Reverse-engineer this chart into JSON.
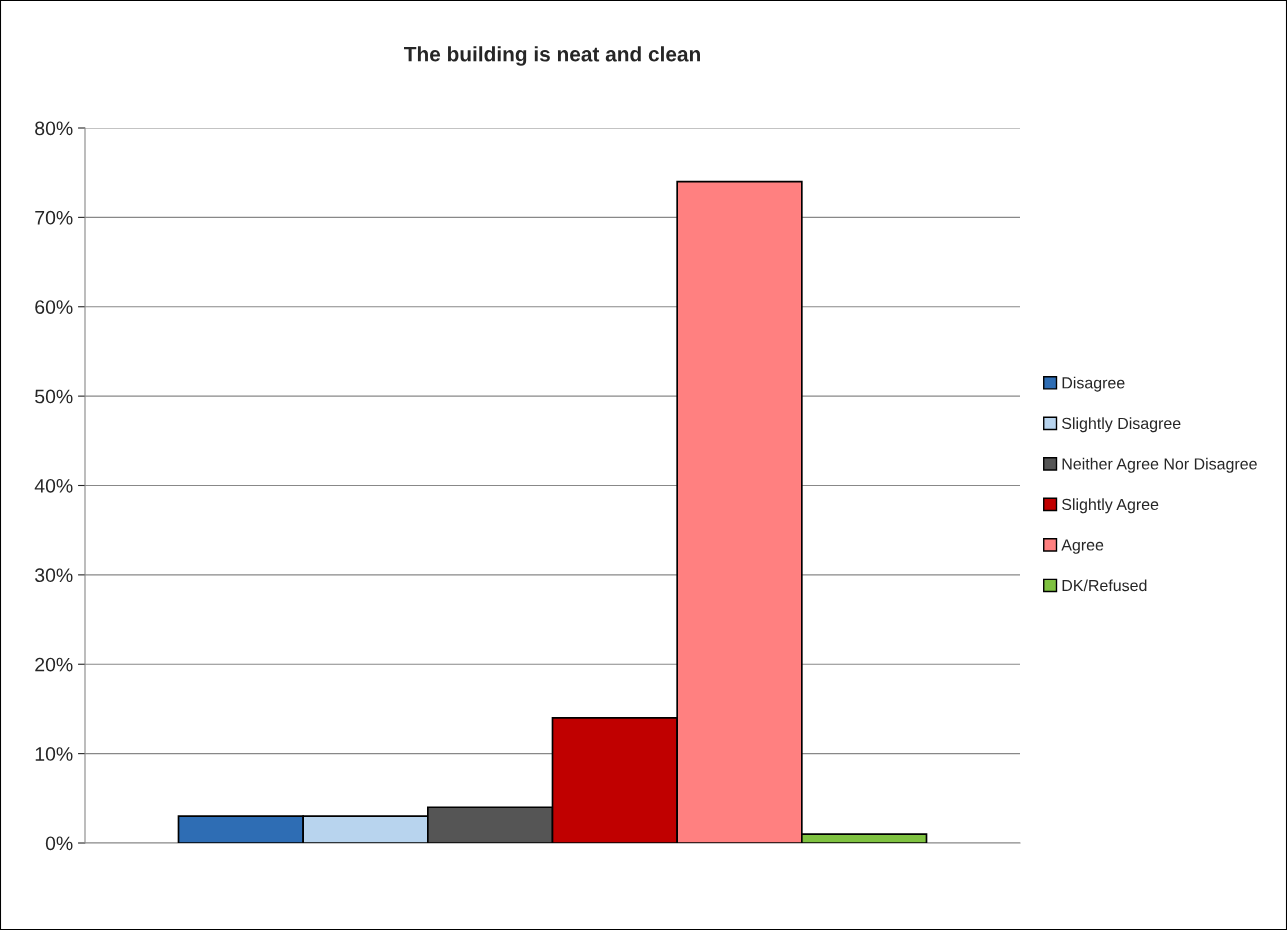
{
  "chart_data": {
    "type": "bar",
    "title": "The building is neat and clean",
    "categories": [
      null
    ],
    "series": [
      {
        "name": "Disagree",
        "color": "#2e6db4",
        "values": [
          3
        ]
      },
      {
        "name": "Slightly Disagree",
        "color": "#b8d4ee",
        "values": [
          3
        ]
      },
      {
        "name": "Neither Agree Nor Disagree",
        "color": "#555555",
        "values": [
          4
        ]
      },
      {
        "name": "Slightly Agree",
        "color": "#c00000",
        "values": [
          14
        ]
      },
      {
        "name": "Agree",
        "color": "#ff8080",
        "values": [
          74
        ]
      },
      {
        "name": "DK/Refused",
        "color": "#7fc241",
        "values": [
          1
        ]
      }
    ],
    "ylim": [
      0,
      80
    ],
    "yticks": [
      {
        "value": 0,
        "label": "0%"
      },
      {
        "value": 10,
        "label": "10%"
      },
      {
        "value": 20,
        "label": "20%"
      },
      {
        "value": 30,
        "label": "30%"
      },
      {
        "value": 40,
        "label": "40%"
      },
      {
        "value": 50,
        "label": "50%"
      },
      {
        "value": 60,
        "label": "60%"
      },
      {
        "value": 70,
        "label": "70%"
      },
      {
        "value": 80,
        "label": "80%"
      }
    ],
    "grid": "y",
    "legend": "right"
  }
}
